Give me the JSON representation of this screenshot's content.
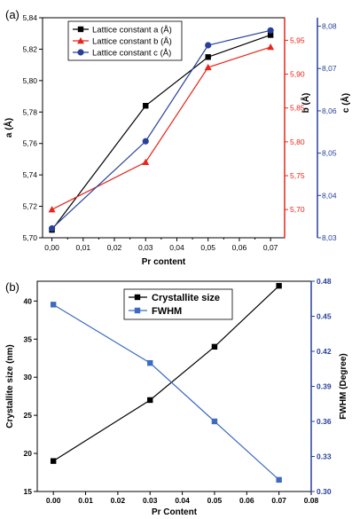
{
  "chart_data": [
    {
      "panel": "(a)",
      "type": "line",
      "xlabel": "Pr content",
      "x_ticks": [
        "0,00",
        "0,01",
        "0,02",
        "0,03",
        "0,04",
        "0,05",
        "0,06",
        "0,07"
      ],
      "x": [
        0.0,
        0.03,
        0.05,
        0.07
      ],
      "xlim": [
        -0.003,
        0.0745
      ],
      "legend_position": "top-left",
      "axes": [
        {
          "id": "a",
          "label": "a (Å)",
          "side": "left",
          "color": "#000000",
          "ylim": [
            5.7,
            5.84
          ],
          "ticks": [
            "5,70",
            "5,72",
            "5,74",
            "5,76",
            "5,78",
            "5,80",
            "5,82",
            "5,84"
          ]
        },
        {
          "id": "b",
          "label": "b (Å)",
          "side": "right",
          "color": "#e8241c",
          "ylim": [
            5.6583,
            5.9833
          ],
          "ticks": [
            "5,70",
            "5,75",
            "5,80",
            "5,85",
            "5,90",
            "5,95"
          ]
        },
        {
          "id": "c",
          "label": "c (Å)",
          "side": "right-outer",
          "color": "#27409a",
          "ylim": [
            8.03,
            8.082
          ],
          "ticks": [
            "8,03",
            "8,04",
            "8,05",
            "8,06",
            "8,07",
            "8,08"
          ]
        }
      ],
      "series": [
        {
          "name": "Lattice constant a (Å)",
          "axis": "a",
          "color": "#000000",
          "marker": "square",
          "values": [
            5.705,
            5.784,
            5.815,
            5.829
          ]
        },
        {
          "name": "Lattice constant b (Å)",
          "axis": "b",
          "color": "#e8241c",
          "marker": "triangle",
          "values": [
            5.7,
            5.77,
            5.91,
            5.94
          ]
        },
        {
          "name": "Lattice constant c (Å)",
          "axis": "c",
          "color": "#27409a",
          "marker": "circle",
          "values": [
            8.0322,
            8.0528,
            8.0755,
            8.079
          ]
        }
      ]
    },
    {
      "panel": "(b)",
      "type": "line",
      "xlabel": "Pr Content",
      "x_ticks": [
        "0.00",
        "0.01",
        "0.02",
        "0.03",
        "0.04",
        "0.05",
        "0.06",
        "0.07",
        "0.08"
      ],
      "x": [
        0.0,
        0.03,
        0.05,
        0.07
      ],
      "xlim": [
        -0.005,
        0.08
      ],
      "legend_position": "top-center",
      "axes": [
        {
          "id": "size",
          "label": "Crystallite size (nm)",
          "side": "left",
          "color": "#000000",
          "ylim": [
            15,
            42.6
          ],
          "ticks": [
            "15",
            "20",
            "25",
            "30",
            "35",
            "40"
          ]
        },
        {
          "id": "fwhm",
          "label": "FWHM (Degree)",
          "side": "right",
          "color": "#27409a",
          "ylim": [
            0.3,
            0.48
          ],
          "ticks": [
            "0.30",
            "0.33",
            "0.36",
            "0.39",
            "0.42",
            "0.45",
            "0.48"
          ]
        }
      ],
      "series": [
        {
          "name": "Crystallite size",
          "axis": "size",
          "color": "#000000",
          "marker": "square",
          "values": [
            19,
            27,
            34,
            42
          ]
        },
        {
          "name": "FWHM",
          "axis": "fwhm",
          "color": "#3c6bc0",
          "marker": "square",
          "values": [
            0.46,
            0.41,
            0.36,
            0.31
          ]
        }
      ]
    }
  ]
}
